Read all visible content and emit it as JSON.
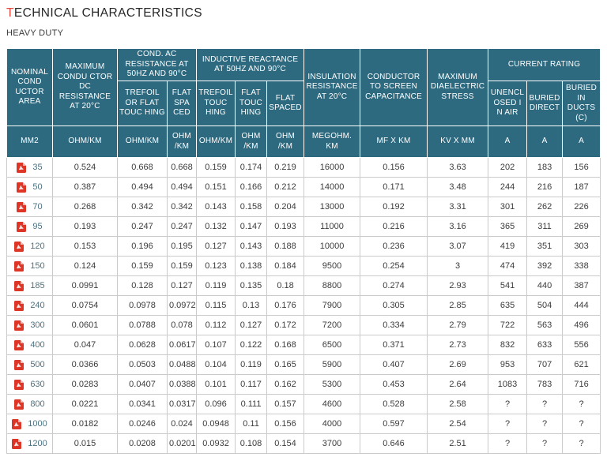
{
  "title": {
    "accent": "T",
    "rest": "ECHNICAL CHARACTERISTICS"
  },
  "subtitle": "HEAVY DUTY",
  "colors": {
    "header_bg": "#2d6a80",
    "accent_red": "#e8493f",
    "pdf_icon_red": "#dd3526",
    "area_text": "#4d7280",
    "cell_text": "#3c3c3c",
    "grid_line": "#cbcbcb"
  },
  "table": {
    "group_headers": [
      {
        "label": "NOMINAL COND UCTOR AREA",
        "rowspan": 2,
        "colspan": 1
      },
      {
        "label": "MAXIMUM CONDU CTOR DC RESISTANCE AT 20°C",
        "rowspan": 2,
        "colspan": 1
      },
      {
        "label": "COND. AC RESISTANCE AT 50HZ AND 90°C",
        "rowspan": 1,
        "colspan": 2
      },
      {
        "label": "INDUCTIVE REACTANCE AT 50HZ AND 90°C",
        "rowspan": 1,
        "colspan": 3
      },
      {
        "label": "INSULATION RESISTANCE AT 20°C",
        "rowspan": 2,
        "colspan": 1
      },
      {
        "label": "CONDUCTOR TO SCREEN CAPACITANCE",
        "rowspan": 2,
        "colspan": 1
      },
      {
        "label": "MAXIMUM DIAELECTRIC STRESS",
        "rowspan": 2,
        "colspan": 1
      },
      {
        "label": "CURRENT RATING",
        "rowspan": 1,
        "colspan": 3
      }
    ],
    "sub_headers": [
      "TREFOIL OR FLAT TOUC HING",
      "FLAT SPA CED",
      "TREFOIL TOUC HING",
      "FLAT TOUC HING",
      "FLAT SPACED",
      "UNENCL OSED I N AIR",
      "BURIED DIRECT",
      "BURIED IN DUCTS (C)"
    ],
    "units": [
      "MM2",
      "OHM/KM",
      "OHM/KM",
      "OHM /KM",
      "OHM/KM",
      "OHM /KM",
      "OHM /KM",
      "MEGOHM. KM",
      "MF X KM",
      "KV X MM",
      "A",
      "A",
      "A"
    ],
    "row_icon": "pdf-file-icon",
    "rows": [
      {
        "area": "35",
        "values": [
          "0.524",
          "0.668",
          "0.668",
          "0.159",
          "0.174",
          "0.219",
          "16000",
          "0.156",
          "3.63",
          "202",
          "183",
          "156"
        ]
      },
      {
        "area": "50",
        "values": [
          "0.387",
          "0.494",
          "0.494",
          "0.151",
          "0.166",
          "0.212",
          "14000",
          "0.171",
          "3.48",
          "244",
          "216",
          "187"
        ]
      },
      {
        "area": "70",
        "values": [
          "0.268",
          "0.342",
          "0.342",
          "0.143",
          "0.158",
          "0.204",
          "13000",
          "0.192",
          "3.31",
          "301",
          "262",
          "226"
        ]
      },
      {
        "area": "95",
        "values": [
          "0.193",
          "0.247",
          "0.247",
          "0.132",
          "0.147",
          "0.193",
          "11000",
          "0.216",
          "3.16",
          "365",
          "311",
          "269"
        ]
      },
      {
        "area": "120",
        "values": [
          "0.153",
          "0.196",
          "0.195",
          "0.127",
          "0.143",
          "0.188",
          "10000",
          "0.236",
          "3.07",
          "419",
          "351",
          "303"
        ]
      },
      {
        "area": "150",
        "values": [
          "0.124",
          "0.159",
          "0.159",
          "0.123",
          "0.138",
          "0.184",
          "9500",
          "0.254",
          "3",
          "474",
          "392",
          "338"
        ]
      },
      {
        "area": "185",
        "values": [
          "0.0991",
          "0.128",
          "0.127",
          "0.119",
          "0.135",
          "0.18",
          "8800",
          "0.274",
          "2.93",
          "541",
          "440",
          "387"
        ]
      },
      {
        "area": "240",
        "values": [
          "0.0754",
          "0.0978",
          "0.0972",
          "0.115",
          "0.13",
          "0.176",
          "7900",
          "0.305",
          "2.85",
          "635",
          "504",
          "444"
        ]
      },
      {
        "area": "300",
        "values": [
          "0.0601",
          "0.0788",
          "0.078",
          "0.112",
          "0.127",
          "0.172",
          "7200",
          "0.334",
          "2.79",
          "722",
          "563",
          "496"
        ]
      },
      {
        "area": "400",
        "values": [
          "0.047",
          "0.0628",
          "0.0617",
          "0.107",
          "0.122",
          "0.168",
          "6500",
          "0.371",
          "2.73",
          "832",
          "633",
          "556"
        ]
      },
      {
        "area": "500",
        "values": [
          "0.0366",
          "0.0503",
          "0.0488",
          "0.104",
          "0.119",
          "0.165",
          "5900",
          "0.407",
          "2.69",
          "953",
          "707",
          "621"
        ]
      },
      {
        "area": "630",
        "values": [
          "0.0283",
          "0.0407",
          "0.0388",
          "0.101",
          "0.117",
          "0.162",
          "5300",
          "0.453",
          "2.64",
          "1083",
          "783",
          "716"
        ]
      },
      {
        "area": "800",
        "values": [
          "0.0221",
          "0.0341",
          "0.0317",
          "0.096",
          "0.111",
          "0.157",
          "4600",
          "0.528",
          "2.58",
          "?",
          "?",
          "?"
        ]
      },
      {
        "area": "1000",
        "values": [
          "0.0182",
          "0.0246",
          "0.024",
          "0.0948",
          "0.11",
          "0.156",
          "4000",
          "0.597",
          "2.54",
          "?",
          "?",
          "?"
        ]
      },
      {
        "area": "1200",
        "values": [
          "0.015",
          "0.0208",
          "0.0201",
          "0.0932",
          "0.108",
          "0.154",
          "3700",
          "0.646",
          "2.51",
          "?",
          "?",
          "?"
        ]
      }
    ]
  }
}
